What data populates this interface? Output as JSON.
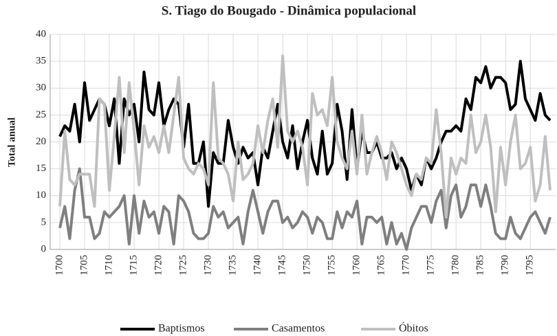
{
  "chart_data": {
    "type": "line",
    "title": "S. Tiago do Bougado - Dinâmica populacional",
    "y_label": "Total anual",
    "x": [
      1700,
      1701,
      1702,
      1703,
      1704,
      1705,
      1706,
      1707,
      1708,
      1709,
      1710,
      1711,
      1712,
      1713,
      1714,
      1715,
      1716,
      1717,
      1718,
      1719,
      1720,
      1721,
      1722,
      1723,
      1724,
      1725,
      1726,
      1727,
      1728,
      1729,
      1730,
      1731,
      1732,
      1733,
      1734,
      1735,
      1736,
      1737,
      1738,
      1739,
      1740,
      1741,
      1742,
      1743,
      1744,
      1745,
      1746,
      1747,
      1748,
      1749,
      1750,
      1751,
      1752,
      1753,
      1754,
      1755,
      1756,
      1757,
      1758,
      1759,
      1760,
      1761,
      1762,
      1763,
      1764,
      1765,
      1766,
      1767,
      1768,
      1769,
      1770,
      1771,
      1772,
      1773,
      1774,
      1775,
      1776,
      1777,
      1778,
      1779,
      1780,
      1781,
      1782,
      1783,
      1784,
      1785,
      1786,
      1787,
      1788,
      1789,
      1790,
      1791,
      1792,
      1793,
      1794,
      1795,
      1796,
      1797,
      1798,
      1799
    ],
    "xlim": [
      1700,
      1799
    ],
    "xticks": [
      1700,
      1705,
      1710,
      1715,
      1720,
      1725,
      1730,
      1735,
      1740,
      1745,
      1750,
      1755,
      1760,
      1765,
      1770,
      1775,
      1780,
      1785,
      1790,
      1795
    ],
    "ylim": [
      0,
      40
    ],
    "yticks": [
      0,
      5,
      10,
      15,
      20,
      25,
      30,
      35,
      40
    ],
    "grid": true,
    "legend": "bottom",
    "series": [
      {
        "name": "Baptismos",
        "color": "#000000",
        "values": [
          21,
          23,
          22,
          27,
          20,
          31,
          24,
          26,
          28,
          27,
          23,
          28,
          16,
          28,
          25,
          27,
          20,
          33,
          26,
          25,
          31,
          23,
          26,
          28,
          27,
          19,
          27,
          16,
          16,
          20,
          8,
          18,
          16,
          16,
          24,
          19,
          16,
          19,
          17,
          18,
          12,
          19,
          17,
          22,
          27,
          20,
          17,
          23,
          15,
          20,
          24,
          17,
          14,
          22,
          14,
          16,
          27,
          22,
          13,
          26,
          15,
          22,
          18,
          18,
          20,
          17,
          17,
          18,
          15,
          17,
          15,
          11,
          14,
          12,
          17,
          15,
          17,
          20,
          22,
          22,
          23,
          22,
          28,
          26,
          32,
          31,
          34,
          30,
          32,
          32,
          31,
          26,
          27,
          35,
          28,
          26,
          24,
          29,
          25,
          24
        ]
      },
      {
        "name": "Casamentos",
        "color": "#7f7f7f",
        "values": [
          4,
          8,
          2,
          11,
          15,
          6,
          6,
          2,
          3,
          7,
          6,
          7,
          8,
          10,
          1,
          10,
          3,
          9,
          6,
          7,
          3,
          8,
          7,
          1,
          10,
          9,
          7,
          3,
          2,
          2,
          3,
          8,
          6,
          7,
          4,
          5,
          6,
          1,
          7,
          11,
          7,
          3,
          7,
          9,
          9,
          5,
          6,
          4,
          5,
          7,
          6,
          3,
          6,
          5,
          2,
          2,
          7,
          4,
          7,
          6,
          9,
          1,
          6,
          6,
          5,
          6,
          1,
          5,
          1,
          3,
          0,
          4,
          6,
          8,
          8,
          5,
          9,
          11,
          4,
          10,
          12,
          6,
          8,
          12,
          12,
          8,
          12,
          8,
          3,
          2,
          2,
          6,
          3,
          2,
          4,
          6,
          7,
          5,
          3,
          6
        ]
      },
      {
        "name": "Óbitos",
        "color": "#bfbfbf",
        "values": [
          8,
          22,
          13,
          12,
          14,
          14,
          14,
          8,
          28,
          27,
          11,
          21,
          32,
          18,
          31,
          22,
          12,
          23,
          19,
          21,
          18,
          23,
          18,
          25,
          32,
          17,
          15,
          14,
          16,
          15,
          12,
          31,
          17,
          16,
          14,
          9,
          20,
          13,
          14,
          16,
          23,
          18,
          24,
          28,
          19,
          36,
          22,
          20,
          22,
          19,
          12,
          29,
          25,
          26,
          23,
          32,
          20,
          17,
          15,
          22,
          14,
          25,
          14,
          18,
          21,
          18,
          13,
          20,
          18,
          15,
          12,
          10,
          14,
          13,
          17,
          16,
          26,
          18,
          6,
          17,
          14,
          17,
          16,
          25,
          18,
          20,
          25,
          19,
          7,
          19,
          12,
          20,
          25,
          15,
          16,
          19,
          9,
          12,
          21,
          11
        ]
      }
    ]
  }
}
